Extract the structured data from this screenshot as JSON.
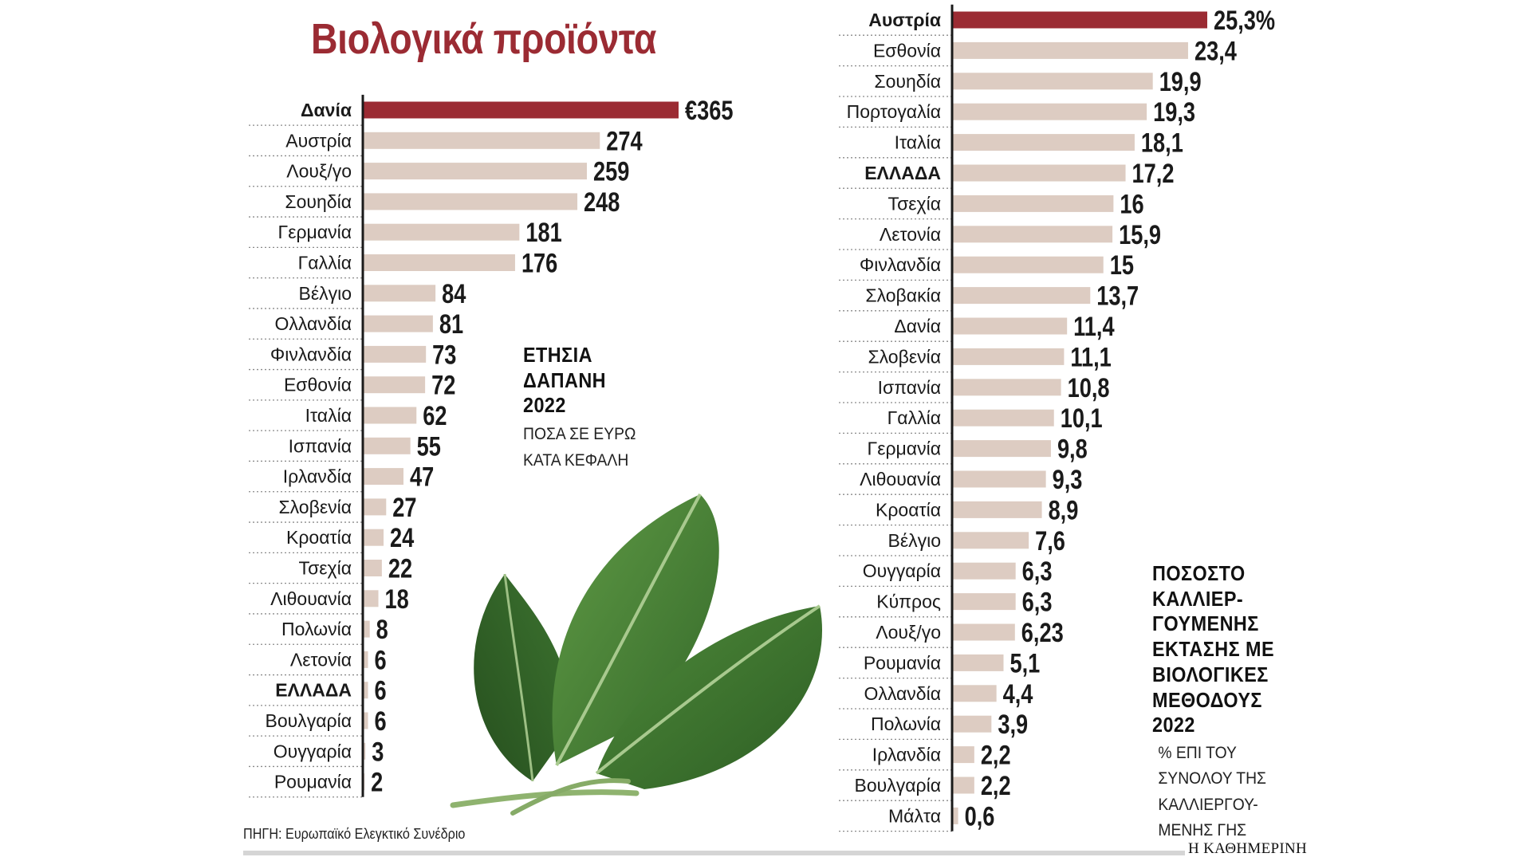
{
  "title": "Βιολογικά προϊόντα",
  "source": "ΠΗΓΗ: Ευρωπαϊκό Ελεγκτικό Συνέδριο",
  "brand": "Η ΚΑΘΗΜΕΡΙΝΗ",
  "colors": {
    "highlight": "#9b2b33",
    "bar": "#ddccc2",
    "axis": "#1a1a1a",
    "title": "#9b2b33"
  },
  "left_note": {
    "lines_bold": [
      "ΕΤΗΣΙΑ",
      "ΔΑΠΑΝΗ",
      "2022"
    ],
    "lines_small": [
      "ΠΟΣΑ ΣΕ ΕΥΡΩ",
      "ΚΑΤΑ ΚΕΦΑΛΗ"
    ]
  },
  "right_note": {
    "lines_bold": [
      "ΠΟΣΟΣΤΟ",
      "ΚΑΛΛΙΕΡ-",
      "ΓΟΥΜΕΝΗΣ",
      "ΕΚΤΑΣΗΣ ΜΕ",
      "ΒΙΟΛΟΓΙΚΕΣ",
      "ΜΕΘΟΔΟΥΣ",
      "2022"
    ],
    "lines_small": [
      "% ΕΠΙ ΤΟΥ",
      "ΣΥΝΟΛΟΥ ΤΗΣ",
      "ΚΑΛΛΙΕΡΓΟΥ-",
      "ΜΕΝΗΣ ΓΗΣ"
    ]
  },
  "illustration": "spinach-leaves",
  "chart_data": [
    {
      "type": "bar",
      "orientation": "horizontal",
      "categories": [
        "Δανία",
        "Αυστρία",
        "Λουξ/γο",
        "Σουηδία",
        "Γερμανία",
        "Γαλλία",
        "Βέλγιο",
        "Ολλανδία",
        "Φινλανδία",
        "Εσθονία",
        "Ιταλία",
        "Ισπανία",
        "Ιρλανδία",
        "Σλοβενία",
        "Κροατία",
        "Τσεχία",
        "Λιθουανία",
        "Πολωνία",
        "Λετονία",
        "ΕΛΛΑΔΑ",
        "Βουλγαρία",
        "Ουγγαρία",
        "Ρουμανία"
      ],
      "values": [
        365,
        274,
        259,
        248,
        181,
        176,
        84,
        81,
        73,
        72,
        62,
        55,
        47,
        27,
        24,
        22,
        18,
        8,
        6,
        6,
        6,
        3,
        2
      ],
      "value_labels": [
        "€365",
        "274",
        "259",
        "248",
        "181",
        "176",
        "84",
        "81",
        "73",
        "72",
        "62",
        "55",
        "47",
        "27",
        "24",
        "22",
        "18",
        "8",
        "6",
        "6",
        "6",
        "3",
        "2"
      ],
      "bold_categories": [
        "Δανία",
        "ΕΛΛΑΔΑ"
      ],
      "highlight": "Δανία",
      "title": "ΕΤΗΣΙΑ ΔΑΠΑΝΗ 2022",
      "subtitle": "ΠΟΣΑ ΣΕ ΕΥΡΩ ΚΑΤΑ ΚΕΦΑΛΗ",
      "unit": "€",
      "xlim": [
        0,
        365
      ]
    },
    {
      "type": "bar",
      "orientation": "horizontal",
      "categories": [
        "Αυστρία",
        "Εσθονία",
        "Σουηδία",
        "Πορτογαλία",
        "Ιταλία",
        "ΕΛΛΑΔΑ",
        "Τσεχία",
        "Λετονία",
        "Φινλανδία",
        "Σλοβακία",
        "Δανία",
        "Σλοβενία",
        "Ισπανία",
        "Γαλλία",
        "Γερμανία",
        "Λιθουανία",
        "Κροατία",
        "Βέλγιο",
        "Ουγγαρία",
        "Κύπρος",
        "Λουξ/γο",
        "Ρουμανία",
        "Ολλανδία",
        "Πολωνία",
        "Ιρλανδία",
        "Βουλγαρία",
        "Μάλτα"
      ],
      "values": [
        25.3,
        23.4,
        19.9,
        19.3,
        18.1,
        17.2,
        16,
        15.9,
        15,
        13.7,
        11.4,
        11.1,
        10.8,
        10.1,
        9.8,
        9.3,
        8.9,
        7.6,
        6.3,
        6.3,
        6.23,
        5.1,
        4.4,
        3.9,
        2.2,
        2.2,
        0.6
      ],
      "value_labels": [
        "25,3%",
        "23,4",
        "19,9",
        "19,3",
        "18,1",
        "17,2",
        "16",
        "15,9",
        "15",
        "13,7",
        "11,4",
        "11,1",
        "10,8",
        "10,1",
        "9,8",
        "9,3",
        "8,9",
        "7,6",
        "6,3",
        "6,3",
        "6,23",
        "5,1",
        "4,4",
        "3,9",
        "2,2",
        "2,2",
        "0,6"
      ],
      "bold_categories": [
        "Αυστρία",
        "ΕΛΛΑΔΑ"
      ],
      "highlight": "Αυστρία",
      "title": "ΠΟΣΟΣΤΟ ΚΑΛΛΙΕΡΓΟΥΜΕΝΗΣ ΕΚΤΑΣΗΣ ΜΕ ΒΙΟΛΟΓΙΚΕΣ ΜΕΘΟΔΟΥΣ 2022",
      "subtitle": "% ΕΠΙ ΤΟΥ ΣΥΝΟΛΟΥ ΤΗΣ ΚΑΛΛΙΕΡΓΟΥΜΕΝΗΣ ΓΗΣ",
      "unit": "%",
      "xlim": [
        0,
        25.3
      ]
    }
  ]
}
